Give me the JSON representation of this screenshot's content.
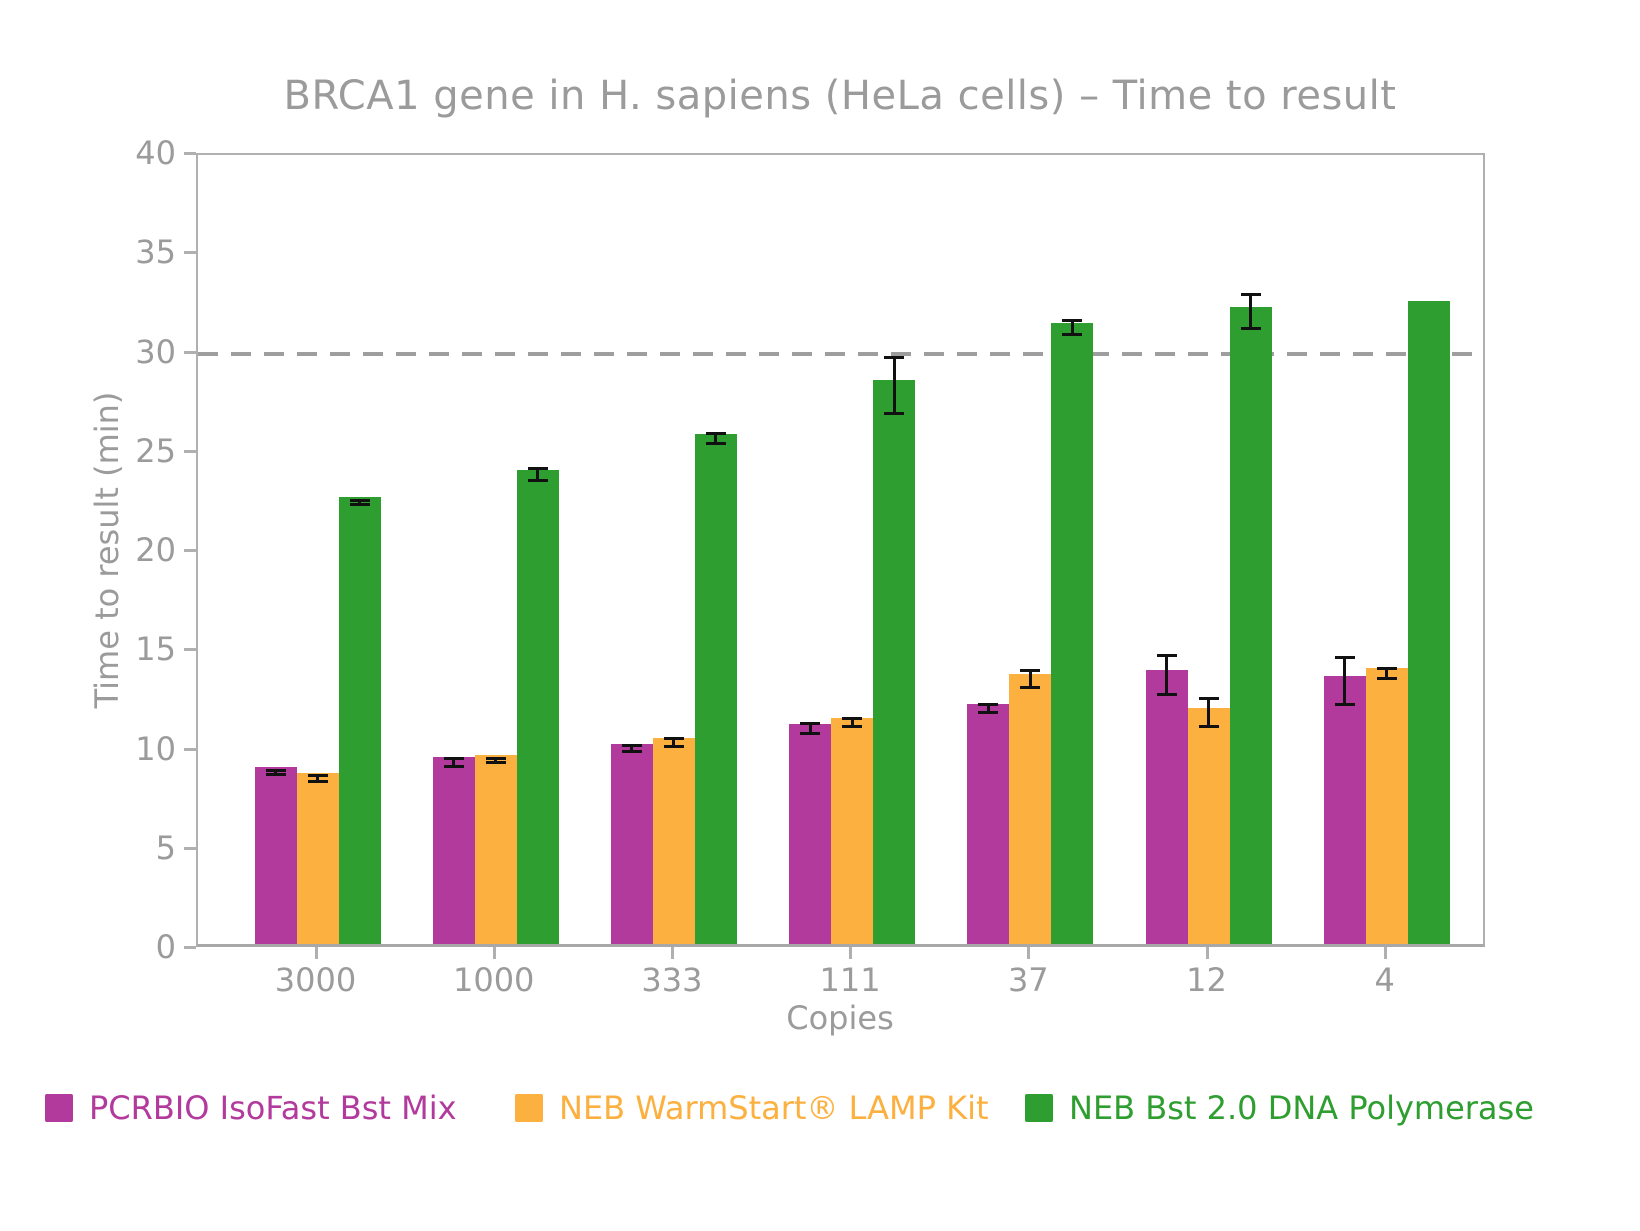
{
  "chart_data": {
    "type": "bar",
    "title": "BRCA1 gene in H. sapiens (HeLa cells) – Time to result",
    "xlabel": "Copies",
    "ylabel": "Time to result (min)",
    "ylim": [
      0,
      40
    ],
    "yticks": [
      0,
      5,
      10,
      15,
      20,
      25,
      30,
      35,
      40
    ],
    "categories": [
      "3000",
      "1000",
      "333",
      "111",
      "37",
      "12",
      "4"
    ],
    "series": [
      {
        "name": "PCRBIO IsoFast Bst Mix",
        "color": "#b23a9d",
        "values": [
          8.9,
          9.4,
          10.1,
          11.1,
          12.1,
          13.8,
          13.5
        ],
        "errors": [
          0.1,
          0.2,
          0.15,
          0.25,
          0.2,
          1.0,
          1.2
        ]
      },
      {
        "name": "NEB WarmStart® LAMP Kit",
        "color": "#fbb040",
        "values": [
          8.6,
          9.5,
          10.4,
          11.4,
          13.6,
          11.9,
          13.9
        ],
        "errors": [
          0.15,
          0.1,
          0.2,
          0.2,
          0.45,
          0.7,
          0.25
        ]
      },
      {
        "name": "NEB Bst 2.0 DNA Polymerase",
        "color": "#2f9e30",
        "values": [
          22.5,
          23.9,
          25.7,
          28.4,
          31.3,
          32.1,
          32.4
        ],
        "errors": [
          0.1,
          0.3,
          0.25,
          1.4,
          0.35,
          0.85,
          0
        ]
      }
    ],
    "threshold_line": {
      "y": 30,
      "style": "dashed",
      "color": "#9e9e9e"
    },
    "grid": false,
    "legend_position": "bottom",
    "axis_color": "#b0b0b0",
    "text_color": "#9b9b9b",
    "errorbar_color": "#111111"
  }
}
